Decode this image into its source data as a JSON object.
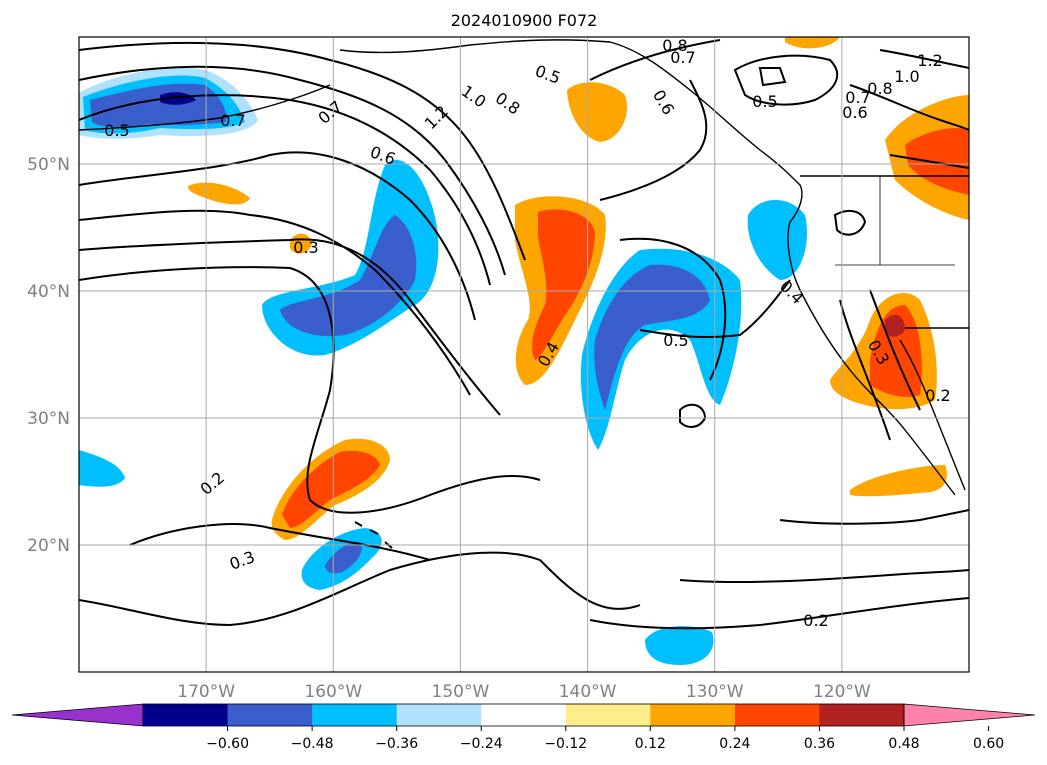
{
  "title": "2024010900 F072",
  "map": {
    "lon_range": [
      -180,
      -110
    ],
    "lat_range": [
      10,
      60
    ],
    "lat_ticks": [
      {
        "value": 20,
        "label": "20°N"
      },
      {
        "value": 30,
        "label": "30°N"
      },
      {
        "value": 40,
        "label": "40°N"
      },
      {
        "value": 50,
        "label": "50°N"
      }
    ],
    "lon_ticks": [
      {
        "value": -170,
        "label": "170°W"
      },
      {
        "value": -160,
        "label": "160°W"
      },
      {
        "value": -150,
        "label": "150°W"
      },
      {
        "value": -140,
        "label": "140°W"
      },
      {
        "value": -130,
        "label": "130°W"
      },
      {
        "value": -120,
        "label": "120°W"
      }
    ],
    "grid": true,
    "contour_labels": [
      "0.5",
      "0.7",
      "0.7",
      "1.2",
      "1.0",
      "0.8",
      "0.5",
      "0.8",
      "0.7",
      "0.6",
      "0.5",
      "0.6",
      "0.7",
      "0.8",
      "1.0",
      "1.2",
      "0.6",
      "0.3",
      "0.4",
      "0.5",
      "0.4",
      "0.3",
      "0.2",
      "0.2",
      "0.3",
      "0.2"
    ]
  },
  "colorbar": {
    "ticks": [
      "−0.60",
      "−0.48",
      "−0.36",
      "−0.24",
      "−0.12",
      "0.12",
      "0.24",
      "0.36",
      "0.48",
      "0.60"
    ],
    "colors": [
      "#9932cc",
      "#00008b",
      "#3a5fcd",
      "#00bfff",
      "#b0e2ff",
      "#ffffff",
      "#ffec8b",
      "#ffa500",
      "#ff4500",
      "#b22222",
      "#ff82ab"
    ],
    "extend": "both"
  }
}
